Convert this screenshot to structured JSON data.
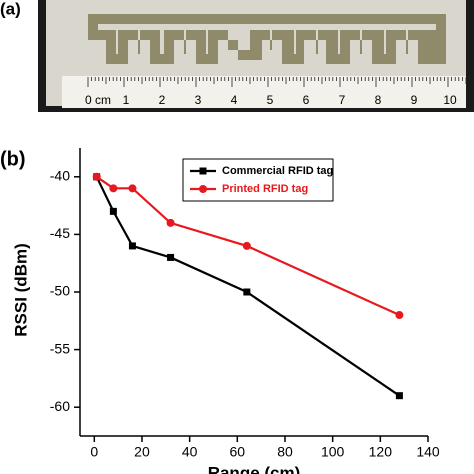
{
  "panel_a": {
    "label": "(a)",
    "ruler_labels": [
      "0 cm",
      "1",
      "2",
      "3",
      "4",
      "5",
      "6",
      "7",
      "8",
      "9",
      "10"
    ]
  },
  "chart_data": {
    "type": "line",
    "panel_label": "(b)",
    "x_label": "Range (cm)",
    "y_label": "RSSI (dBm)",
    "series": [
      {
        "name": "Commercial RFID tag",
        "color": "#000000",
        "marker": "square",
        "x": [
          1,
          8,
          16,
          32,
          64,
          128
        ],
        "values": [
          -40,
          -43,
          -46,
          -47,
          -50,
          -59
        ]
      },
      {
        "name": "Printed RFID tag",
        "color": "#e8191e",
        "marker": "circle",
        "x": [
          1,
          8,
          16,
          32,
          64,
          128
        ],
        "values": [
          -40,
          -41,
          -41,
          -44,
          -46,
          -52
        ]
      }
    ],
    "xlim": [
      -6,
      140
    ],
    "xticks": [
      0,
      20,
      40,
      60,
      80,
      100,
      120,
      140
    ],
    "ylim": [
      -62.5,
      -37.5
    ],
    "yticks": [
      -40,
      -45,
      -50,
      -55,
      -60
    ],
    "legend": "top"
  }
}
